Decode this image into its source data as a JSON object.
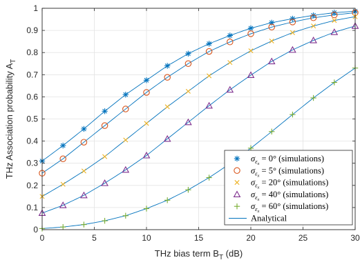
{
  "chart_data": {
    "type": "line",
    "xlabel": "THz bias term B",
    "xlabel_sub": "T",
    "xlabel_unit": " (dB)",
    "ylabel": "THz Association probability A",
    "ylabel_sub": "T",
    "xlim": [
      0,
      30
    ],
    "ylim": [
      0,
      1
    ],
    "xticks": [
      0,
      5,
      10,
      15,
      20,
      25,
      30
    ],
    "yticks": [
      0,
      0.1,
      0.2,
      0.3,
      0.4,
      0.5,
      0.6,
      0.7,
      0.8,
      0.9,
      1
    ],
    "grid": true,
    "legend_position": "bottom-right",
    "x": [
      0,
      2,
      4,
      6,
      8,
      10,
      12,
      14,
      16,
      18,
      20,
      22,
      24,
      26,
      28,
      30
    ],
    "series": [
      {
        "name": "σεx = 0° (simulations)",
        "sigma": "0°",
        "marker": "asterisk",
        "color": "#0072BD",
        "values": [
          0.31,
          0.38,
          0.455,
          0.535,
          0.61,
          0.675,
          0.74,
          0.795,
          0.84,
          0.877,
          0.91,
          0.935,
          0.953,
          0.968,
          0.98,
          0.987
        ]
      },
      {
        "name": "σεx = 5° (simulations)",
        "sigma": "5°",
        "marker": "circle",
        "color": "#D95319",
        "values": [
          0.255,
          0.32,
          0.395,
          0.47,
          0.545,
          0.62,
          0.688,
          0.75,
          0.805,
          0.848,
          0.885,
          0.915,
          0.938,
          0.957,
          0.97,
          0.98
        ]
      },
      {
        "name": "σεx = 20° (simulations)",
        "sigma": "20°",
        "marker": "x",
        "color": "#EDB120",
        "values": [
          0.15,
          0.205,
          0.265,
          0.33,
          0.405,
          0.48,
          0.555,
          0.625,
          0.695,
          0.755,
          0.808,
          0.852,
          0.89,
          0.92,
          0.945,
          0.962
        ]
      },
      {
        "name": "σεx = 40° (simulations)",
        "sigma": "40°",
        "marker": "triangle",
        "color": "#7E2F8E",
        "values": [
          0.075,
          0.11,
          0.155,
          0.21,
          0.27,
          0.335,
          0.41,
          0.485,
          0.56,
          0.632,
          0.698,
          0.76,
          0.812,
          0.855,
          0.892,
          0.92
        ]
      },
      {
        "name": "σεx = 60° (simulations)",
        "sigma": "60°",
        "marker": "plus",
        "color": "#77AC30",
        "values": [
          0.005,
          0.012,
          0.023,
          0.04,
          0.063,
          0.095,
          0.133,
          0.18,
          0.235,
          0.298,
          0.368,
          0.443,
          0.52,
          0.595,
          0.665,
          0.73
        ]
      }
    ],
    "analytical": {
      "name": "Analytical",
      "color": "#0072BD"
    }
  }
}
